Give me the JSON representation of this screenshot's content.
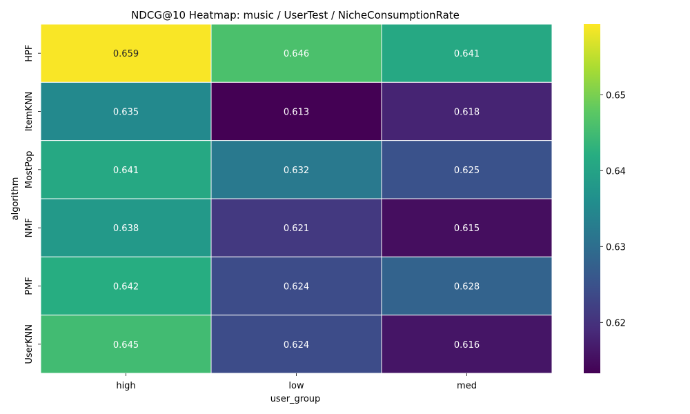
{
  "chart_data": {
    "type": "heatmap",
    "title": "NDCG@10 Heatmap: music / UserTest / NicheConsumptionRate",
    "xlabel": "user_group",
    "ylabel": "algorithm",
    "x_categories": [
      "high",
      "low",
      "med"
    ],
    "y_categories": [
      "HPF",
      "ItemKNN",
      "MostPop",
      "NMF",
      "PMF",
      "UserKNN"
    ],
    "values": [
      [
        0.659,
        0.646,
        0.641
      ],
      [
        0.635,
        0.613,
        0.618
      ],
      [
        0.641,
        0.632,
        0.625
      ],
      [
        0.638,
        0.621,
        0.615
      ],
      [
        0.642,
        0.624,
        0.628
      ],
      [
        0.645,
        0.624,
        0.616
      ]
    ],
    "value_format": "3 decimals",
    "colormap": "viridis",
    "colorbar": {
      "range": [
        0.6133,
        0.6593
      ],
      "ticks": [
        0.62,
        0.63,
        0.64,
        0.65
      ],
      "tick_labels": [
        "0.62",
        "0.63",
        "0.64",
        "0.65"
      ]
    },
    "grid": false
  }
}
